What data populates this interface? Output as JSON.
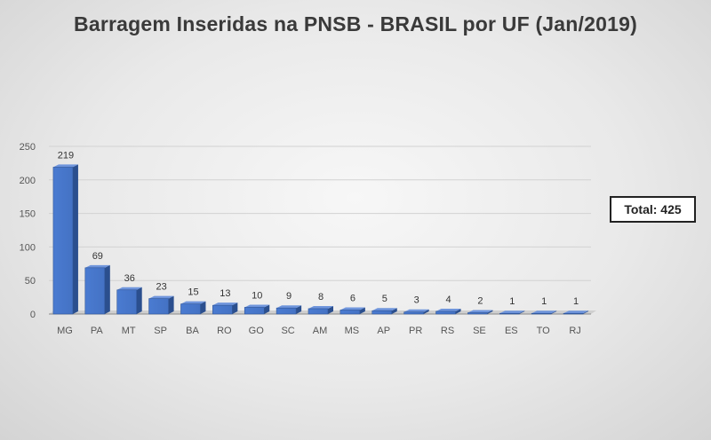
{
  "chart_data": {
    "type": "bar",
    "title": "Barragem Inseridas na PNSB - BRASIL por UF (Jan/2019)",
    "categories": [
      "MG",
      "PA",
      "MT",
      "SP",
      "BA",
      "RO",
      "GO",
      "SC",
      "AM",
      "MS",
      "AP",
      "PR",
      "RS",
      "SE",
      "ES",
      "TO",
      "RJ"
    ],
    "values": [
      219,
      69,
      36,
      23,
      15,
      13,
      10,
      9,
      8,
      6,
      5,
      3,
      4,
      2,
      1,
      1,
      1
    ],
    "ylim": [
      0,
      250
    ],
    "yticks": [
      0,
      50,
      100,
      150,
      200,
      250
    ],
    "grid": true,
    "bar_color": "#4472C4",
    "annotation": "Total: 425"
  }
}
